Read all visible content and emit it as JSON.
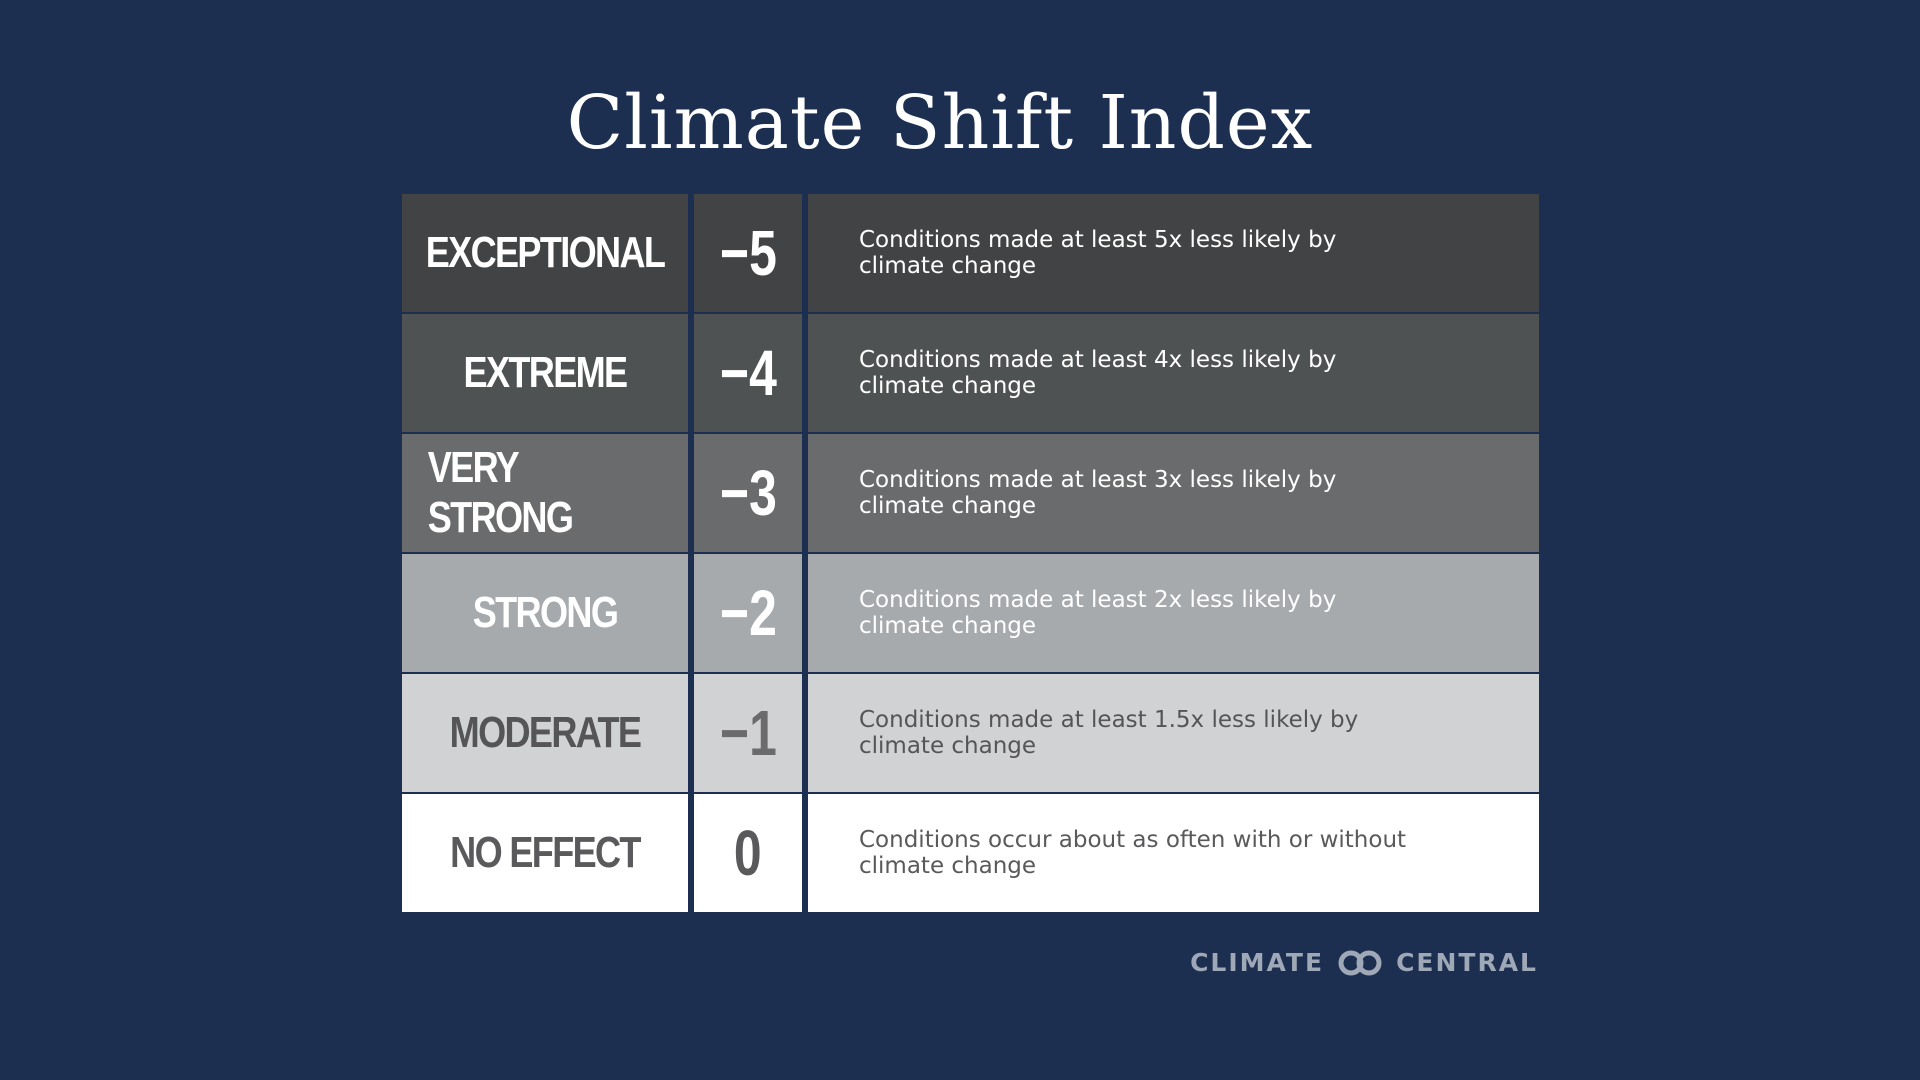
{
  "title": "Climate Shift Index",
  "rows": [
    {
      "level": "EXCEPTIONAL",
      "value": "−5",
      "description": "Conditions made at least 5x less likely by climate change",
      "bg": "#424345",
      "text_color": "#ffffff",
      "value_color": "#ffffff"
    },
    {
      "level": "EXTREME",
      "value": "−4",
      "description": "Conditions made at least 4x less likely by climate change",
      "bg": "#4f5253",
      "text_color": "#ffffff",
      "value_color": "#ffffff"
    },
    {
      "level": "VERY STRONG",
      "value": "−3",
      "description": "Conditions made at least 3x less likely by climate change",
      "bg": "#6a6b6d",
      "text_color": "#ffffff",
      "value_color": "#ffffff"
    },
    {
      "level": "STRONG",
      "value": "−2",
      "description": "Conditions made at least  2x less likely by climate change",
      "bg": "#a6aaad",
      "text_color": "#ffffff",
      "value_color": "#ffffff"
    },
    {
      "level": "MODERATE",
      "value": "−1",
      "description": "Conditions made at least 1.5x less likely by climate change",
      "bg": "#d1d2d4",
      "text_color": "#555557",
      "value_color": "#6b6b6d"
    },
    {
      "level": "NO EFFECT",
      "value": "0",
      "description": "Conditions occur about as often with or without climate change",
      "bg": "#ffffff",
      "text_color": "#5a5a5c",
      "value_color": "#5a5a5c"
    }
  ],
  "logo": {
    "left_text": "CLIMATE",
    "right_text": "CENTRAL",
    "icon": "linked-rings-icon"
  },
  "colors": {
    "background": "#1c2f50",
    "logo": "#9fa8b6"
  }
}
